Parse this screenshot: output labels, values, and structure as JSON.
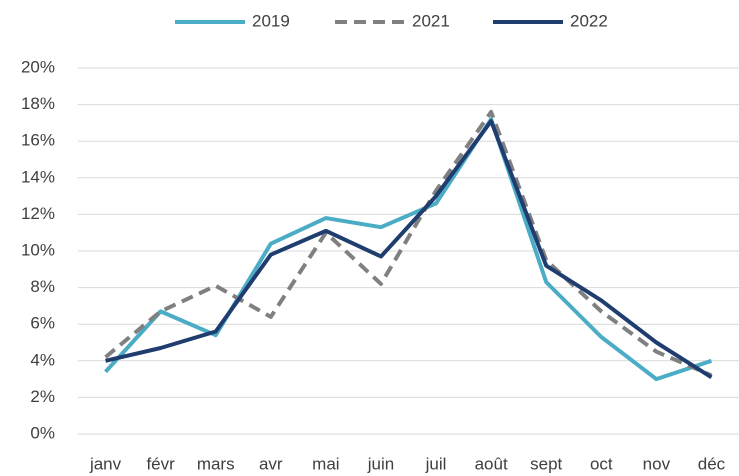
{
  "chart_data": {
    "type": "line",
    "categories": [
      "janv",
      "févr",
      "mars",
      "avr",
      "mai",
      "juin",
      "juil",
      "août",
      "sept",
      "oct",
      "nov",
      "déc"
    ],
    "series": [
      {
        "name": "2019",
        "color": "#4bacc6",
        "dashed": false,
        "values": [
          3.4,
          6.7,
          5.4,
          10.4,
          11.8,
          11.3,
          12.6,
          17.2,
          8.3,
          5.3,
          3.0,
          4.0
        ]
      },
      {
        "name": "2021",
        "color": "#808080",
        "dashed": true,
        "values": [
          4.2,
          6.7,
          8.1,
          6.4,
          11.0,
          8.2,
          13.3,
          17.6,
          9.5,
          6.7,
          4.5,
          3.2
        ]
      },
      {
        "name": "2022",
        "color": "#1f3d6e",
        "dashed": false,
        "values": [
          4.0,
          4.7,
          5.6,
          9.8,
          11.1,
          9.7,
          13.0,
          17.1,
          9.2,
          7.3,
          5.0,
          3.1
        ]
      }
    ],
    "ylim": [
      0,
      20
    ],
    "yticks": [
      {
        "value": 0,
        "label": "0%"
      },
      {
        "value": 2,
        "label": "2%"
      },
      {
        "value": 4,
        "label": "4%"
      },
      {
        "value": 6,
        "label": "6%"
      },
      {
        "value": 8,
        "label": "8%"
      },
      {
        "value": 10,
        "label": "10%"
      },
      {
        "value": 12,
        "label": "12%"
      },
      {
        "value": 14,
        "label": "14%"
      },
      {
        "value": 16,
        "label": "16%"
      },
      {
        "value": 18,
        "label": "18%"
      },
      {
        "value": 20,
        "label": "20%"
      }
    ],
    "grid": true,
    "legend": "top"
  }
}
